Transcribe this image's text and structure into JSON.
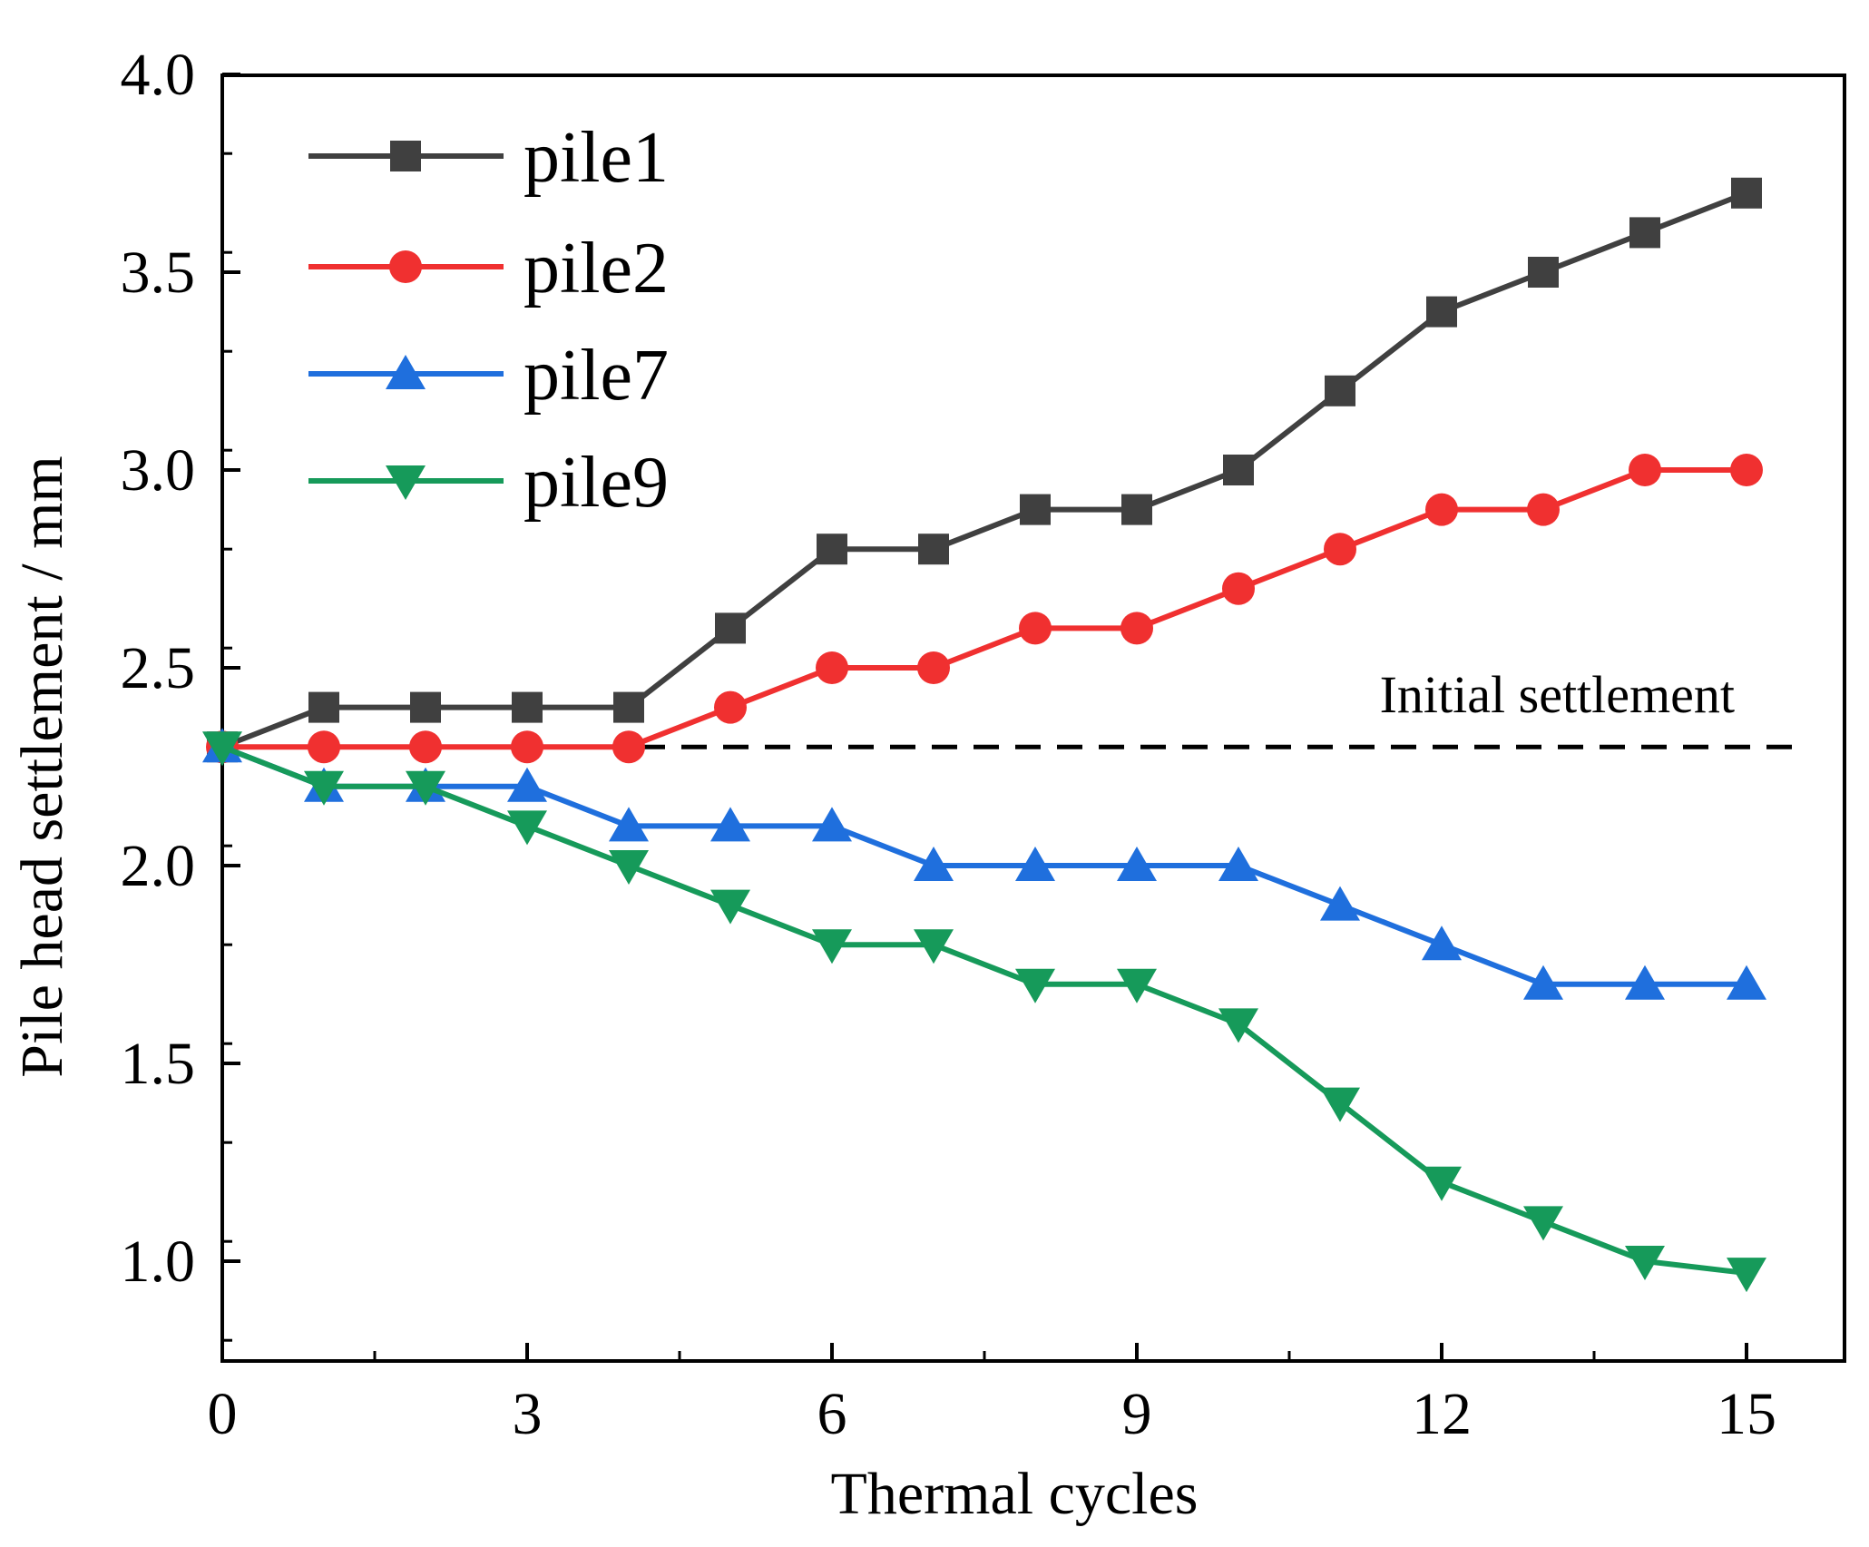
{
  "chart_data": {
    "type": "line",
    "title": "",
    "xlabel": "Thermal cycles",
    "ylabel": "Pile head settlement / mm",
    "xlim": [
      0,
      16
    ],
    "ylim": [
      0.8,
      4.0
    ],
    "x_ticks": [
      0,
      3,
      6,
      9,
      12,
      15
    ],
    "y_ticks": [
      1.0,
      1.5,
      2.0,
      2.5,
      3.0,
      3.5,
      4.0
    ],
    "x_tick_labels": [
      "0",
      "3",
      "6",
      "9",
      "12",
      "15"
    ],
    "y_tick_labels": [
      "1.0",
      "1.5",
      "2.0",
      "2.5",
      "3.0",
      "3.5",
      "4.0"
    ],
    "grid": false,
    "legend_position": "top-left",
    "x": [
      0,
      1,
      2,
      3,
      4,
      5,
      6,
      7,
      8,
      9,
      10,
      11,
      12,
      13,
      14,
      15
    ],
    "series": [
      {
        "name": "pile1",
        "color": "#404040",
        "marker": "square",
        "values": [
          2.3,
          2.4,
          2.4,
          2.4,
          2.4,
          2.6,
          2.8,
          2.8,
          2.9,
          2.9,
          3.0,
          3.2,
          3.4,
          3.5,
          3.6,
          3.7
        ]
      },
      {
        "name": "pile2",
        "color": "#f03030",
        "marker": "circle",
        "values": [
          2.3,
          2.3,
          2.3,
          2.3,
          2.3,
          2.4,
          2.5,
          2.5,
          2.6,
          2.6,
          2.7,
          2.8,
          2.9,
          2.9,
          3.0,
          3.0
        ]
      },
      {
        "name": "pile7",
        "color": "#1f6fdd",
        "marker": "triangle-up",
        "values": [
          2.3,
          2.2,
          2.2,
          2.2,
          2.1,
          2.1,
          2.1,
          2.0,
          2.0,
          2.0,
          2.0,
          1.9,
          1.8,
          1.7,
          1.7,
          1.7
        ]
      },
      {
        "name": "pile9",
        "color": "#169a5a",
        "marker": "triangle-down",
        "values": [
          2.3,
          2.2,
          2.2,
          2.1,
          2.0,
          1.9,
          1.8,
          1.8,
          1.7,
          1.7,
          1.6,
          1.4,
          1.2,
          1.1,
          1.0,
          0.97
        ]
      }
    ],
    "reference_line": {
      "label": "Initial settlement",
      "y": 2.3,
      "style": "dashed",
      "color": "#000000"
    }
  }
}
